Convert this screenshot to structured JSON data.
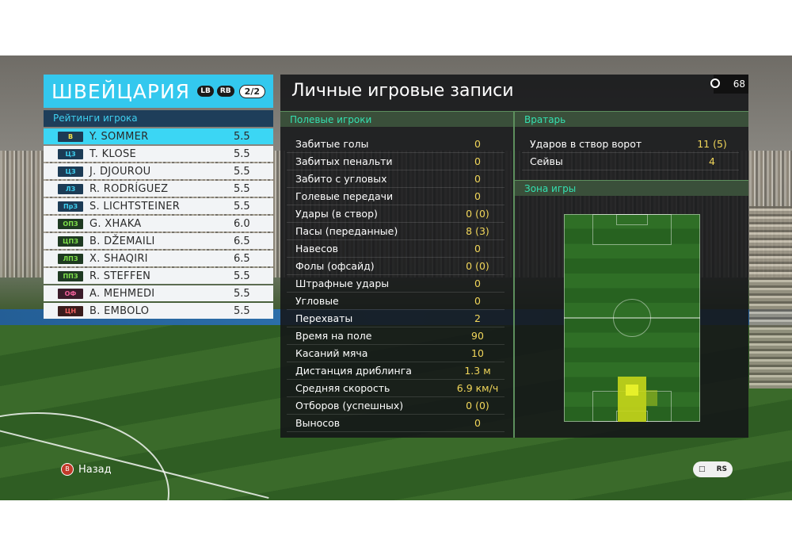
{
  "team": {
    "name": "ШВЕЙЦАРИЯ",
    "lb": "LB",
    "rb": "RB",
    "page": "2/2",
    "ratings_label": "Рейтинги игрока",
    "players": [
      {
        "pos": "В",
        "pos_color": "#f2e04a",
        "pos_bg": "#1c3b55",
        "name": "Y. SOMMER",
        "rating": "5.5"
      },
      {
        "pos": "ЦЗ",
        "pos_color": "#3fd0f0",
        "pos_bg": "#1c3b55",
        "name": "T. KLOSE",
        "rating": "5.5"
      },
      {
        "pos": "ЦЗ",
        "pos_color": "#3fd0f0",
        "pos_bg": "#1c3b55",
        "name": "J. DJOUROU",
        "rating": "5.5"
      },
      {
        "pos": "ЛЗ",
        "pos_color": "#3fd0f0",
        "pos_bg": "#1c3b55",
        "name": "R. RODRÍGUEZ",
        "rating": "5.5"
      },
      {
        "pos": "ПрЗ",
        "pos_color": "#3fd0f0",
        "pos_bg": "#1c3b55",
        "name": "S. LICHTSTEINER",
        "rating": "5.5"
      },
      {
        "pos": "ОПЗ",
        "pos_color": "#7ee04a",
        "pos_bg": "#1f3a22",
        "name": "G. XHAKA",
        "rating": "6.0"
      },
      {
        "pos": "ЦПЗ",
        "pos_color": "#7ee04a",
        "pos_bg": "#1f3a22",
        "name": "B. DŽEMAILI",
        "rating": "6.5"
      },
      {
        "pos": "ЛПЗ",
        "pos_color": "#7ee04a",
        "pos_bg": "#1f3a22",
        "name": "X. SHAQIRI",
        "rating": "6.5"
      },
      {
        "pos": "ППЗ",
        "pos_color": "#7ee04a",
        "pos_bg": "#1f3a22",
        "name": "R. STEFFEN",
        "rating": "5.5"
      },
      {
        "pos": "ОФ",
        "pos_color": "#f0609a",
        "pos_bg": "#3a1c2a",
        "name": "A. MEHMEDI",
        "rating": "5.5"
      },
      {
        "pos": "ЦН",
        "pos_color": "#f06060",
        "pos_bg": "#3a1c1c",
        "name": "B. EMBOLO",
        "rating": "5.5"
      }
    ]
  },
  "stats": {
    "title": "Личные игровые записи",
    "timer": "68",
    "field_header": "Полевые игроки",
    "gk_header": "Вратарь",
    "zone_header": "Зона игры",
    "field_rows": [
      {
        "label": "Забитые голы",
        "value": "0"
      },
      {
        "label": "Забитых пенальти",
        "value": "0"
      },
      {
        "label": "Забито с угловых",
        "value": "0"
      },
      {
        "label": "Голевые передачи",
        "value": "0"
      },
      {
        "label": "Удары (в створ)",
        "value": "0 (0)"
      },
      {
        "label": "Пасы (переданные)",
        "value": "8 (3)"
      },
      {
        "label": "Навесов",
        "value": "0"
      },
      {
        "label": "Фолы (офсайд)",
        "value": "0 (0)"
      },
      {
        "label": "Штрафные удары",
        "value": "0"
      },
      {
        "label": "Угловые",
        "value": "0"
      },
      {
        "label": "Перехваты",
        "value": "2"
      },
      {
        "label": "Время на поле",
        "value": "90"
      },
      {
        "label": "Касаний мяча",
        "value": "10"
      },
      {
        "label": "Дистанция дриблинга",
        "value": "1.3 м"
      },
      {
        "label": "Средняя скорость",
        "value": "6.9 км/ч"
      },
      {
        "label": "Отборов (успешных)",
        "value": "0 (0)"
      },
      {
        "label": "Выносов",
        "value": "0"
      }
    ],
    "gk_rows": [
      {
        "label": "Ударов в створ ворот",
        "value": "11 (5)"
      },
      {
        "label": "Сейвы",
        "value": "4"
      }
    ]
  },
  "footer": {
    "back_button_glyph": "B",
    "back_label": "Назад",
    "right_glyph": "RS"
  },
  "icons": [
    "timer-icon",
    "chat-icon",
    "back-button-icon"
  ],
  "colors": {
    "accent": "#33c8ee",
    "value": "#f1d65a",
    "section": "#34e0b0"
  }
}
